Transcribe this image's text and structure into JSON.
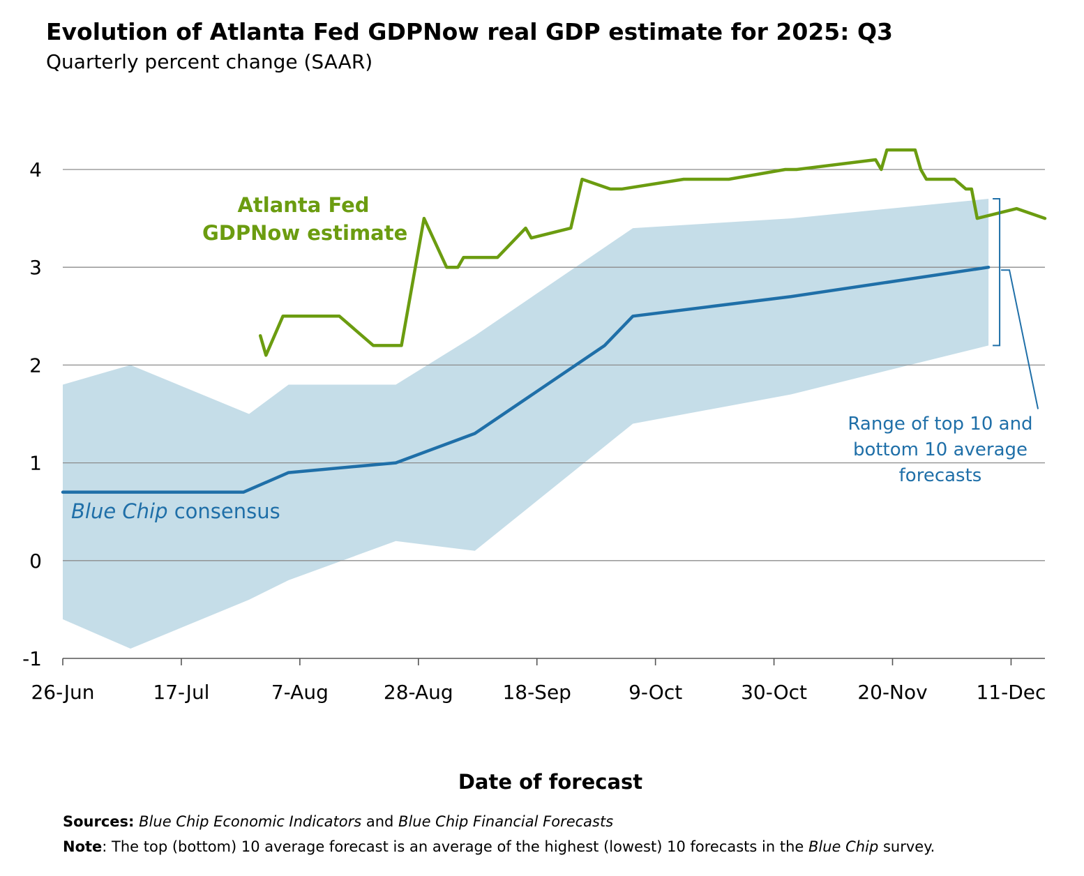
{
  "title": "Evolution of Atlanta Fed GDPNow real GDP estimate for 2025: Q3",
  "subtitle": "Quarterly percent change (SAAR)",
  "xlabel": "Date of forecast",
  "footer": {
    "sources_label": "Sources:",
    "sources_part1": "Blue Chip Economic Indicators",
    "sources_and": " and ",
    "sources_part2": "Blue Chip Financial Forecasts",
    "note_label": "Note",
    "note_text_1": ": The top (bottom) 10 average forecast is an average of the highest (lowest) 10 forecasts in the ",
    "note_italic": "Blue Chip",
    "note_text_2": " survey."
  },
  "annotations": {
    "gdpnow_line1": "Atlanta Fed",
    "gdpnow_line2": "GDPNow estimate",
    "bluechip_italic": "Blue Chip",
    "bluechip_rest": " consensus",
    "range_line1": "Range of top 10 and",
    "range_line2": "bottom 10 average",
    "range_line3": "forecasts"
  },
  "colors": {
    "gdpnow": "#6b9c10",
    "bluechip": "#1f6fa8",
    "range_band": "#c5dde8",
    "grid": "#8c8c8c"
  },
  "chart_data": {
    "type": "line",
    "x_axis": {
      "type": "date",
      "range": [
        "2025-06-26",
        "2025-12-17"
      ],
      "tick_dates": [
        "2025-06-26",
        "2025-07-17",
        "2025-08-07",
        "2025-08-28",
        "2025-09-18",
        "2025-10-09",
        "2025-10-30",
        "2025-11-20",
        "2025-12-11"
      ],
      "tick_labels": [
        "26-Jun",
        "17-Jul",
        "7-Aug",
        "28-Aug",
        "18-Sep",
        "9-Oct",
        "30-Oct",
        "20-Nov",
        "11-Dec"
      ]
    },
    "y_axis": {
      "range": [
        -1,
        4
      ],
      "ticks": [
        -1,
        0,
        1,
        2,
        3,
        4
      ],
      "tick_labels": [
        "-1",
        "0",
        "1",
        "2",
        "3",
        "4"
      ],
      "grid": true
    },
    "series": [
      {
        "key": "bluechip",
        "style": "line",
        "points": [
          [
            "2025-06-26",
            0.7
          ],
          [
            "2025-07-28",
            0.7
          ],
          [
            "2025-08-05",
            0.9
          ],
          [
            "2025-08-24",
            1.0
          ],
          [
            "2025-09-07",
            1.3
          ],
          [
            "2025-09-30",
            2.2
          ],
          [
            "2025-10-05",
            2.5
          ],
          [
            "2025-10-19",
            2.6
          ],
          [
            "2025-11-02",
            2.7
          ],
          [
            "2025-12-07",
            3.0
          ]
        ]
      },
      {
        "key": "range",
        "style": "band",
        "upper": [
          [
            "2025-06-26",
            1.8
          ],
          [
            "2025-07-08",
            2.0
          ],
          [
            "2025-07-29",
            1.5
          ],
          [
            "2025-08-05",
            1.8
          ],
          [
            "2025-08-24",
            1.8
          ],
          [
            "2025-09-07",
            2.3
          ],
          [
            "2025-10-05",
            3.4
          ],
          [
            "2025-11-02",
            3.5
          ],
          [
            "2025-12-07",
            3.7
          ]
        ],
        "lower": [
          [
            "2025-06-26",
            -0.6
          ],
          [
            "2025-07-08",
            -0.9
          ],
          [
            "2025-07-29",
            -0.4
          ],
          [
            "2025-08-05",
            -0.2
          ],
          [
            "2025-08-24",
            0.2
          ],
          [
            "2025-09-07",
            0.1
          ],
          [
            "2025-10-05",
            1.4
          ],
          [
            "2025-11-02",
            1.7
          ],
          [
            "2025-12-07",
            2.2
          ]
        ]
      },
      {
        "key": "gdpnow",
        "style": "line",
        "points": [
          [
            "2025-07-31",
            2.3
          ],
          [
            "2025-08-01",
            2.1
          ],
          [
            "2025-08-04",
            2.5
          ],
          [
            "2025-08-14",
            2.5
          ],
          [
            "2025-08-20",
            2.2
          ],
          [
            "2025-08-25",
            2.2
          ],
          [
            "2025-08-29",
            3.5
          ],
          [
            "2025-09-02",
            3.0
          ],
          [
            "2025-09-04",
            3.0
          ],
          [
            "2025-09-05",
            3.1
          ],
          [
            "2025-09-11",
            3.1
          ],
          [
            "2025-09-16",
            3.4
          ],
          [
            "2025-09-17",
            3.3
          ],
          [
            "2025-09-24",
            3.4
          ],
          [
            "2025-09-26",
            3.9
          ],
          [
            "2025-10-01",
            3.8
          ],
          [
            "2025-10-03",
            3.8
          ],
          [
            "2025-10-14",
            3.9
          ],
          [
            "2025-10-22",
            3.9
          ],
          [
            "2025-11-01",
            4.0
          ],
          [
            "2025-11-03",
            4.0
          ],
          [
            "2025-11-17",
            4.1
          ],
          [
            "2025-11-18",
            4.0
          ],
          [
            "2025-11-19",
            4.2
          ],
          [
            "2025-11-24",
            4.2
          ],
          [
            "2025-11-25",
            4.0
          ],
          [
            "2025-11-26",
            3.9
          ],
          [
            "2025-12-01",
            3.9
          ],
          [
            "2025-12-03",
            3.8
          ],
          [
            "2025-12-04",
            3.8
          ],
          [
            "2025-12-05",
            3.5
          ],
          [
            "2025-12-12",
            3.6
          ],
          [
            "2025-12-17",
            3.5
          ]
        ]
      }
    ]
  }
}
